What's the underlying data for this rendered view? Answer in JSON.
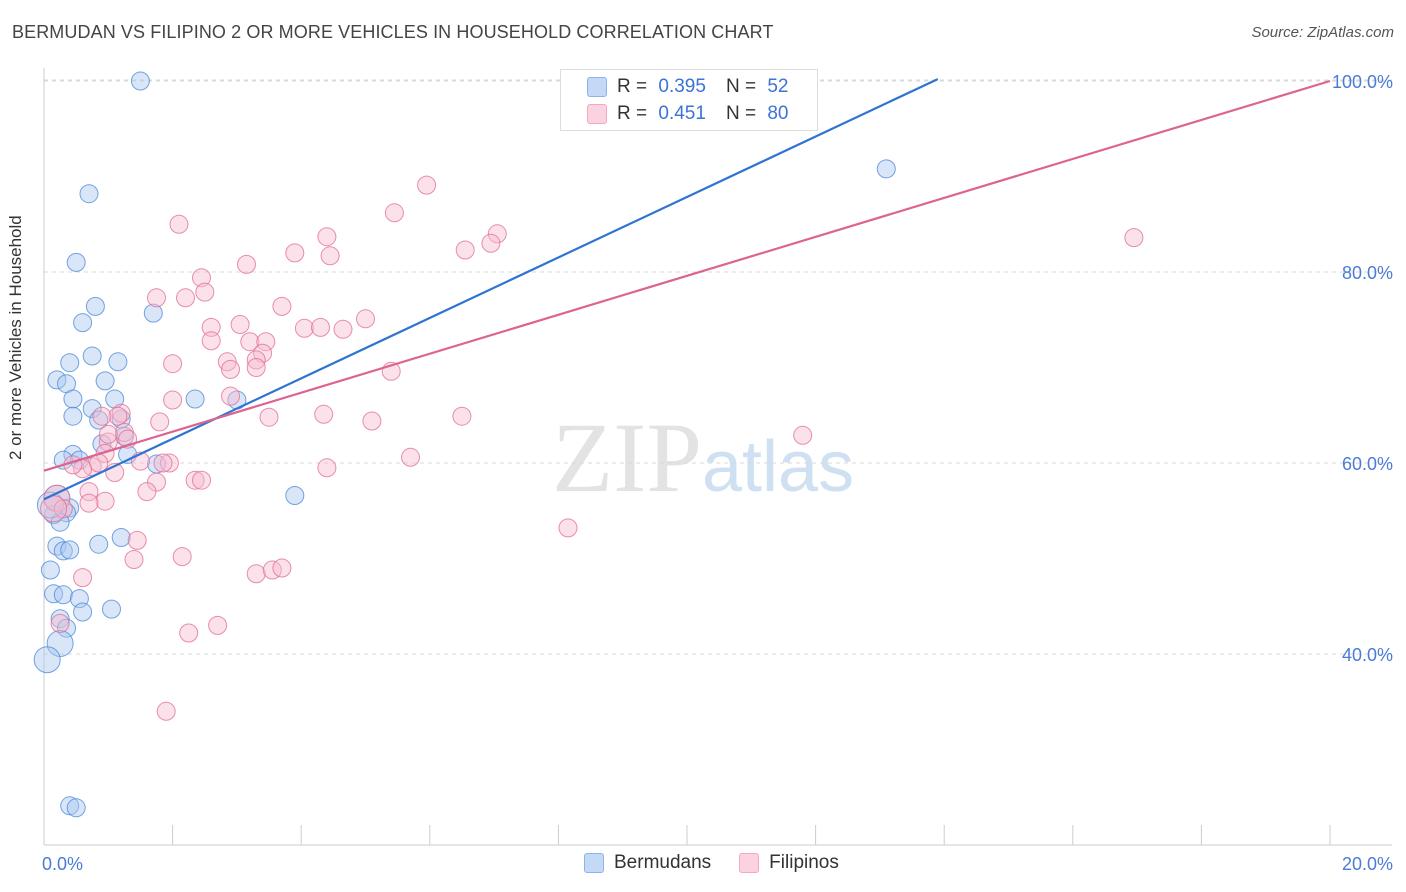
{
  "title": "BERMUDAN VS FILIPINO 2 OR MORE VEHICLES IN HOUSEHOLD CORRELATION CHART",
  "source": "Source: ZipAtlas.com",
  "watermark": {
    "zip": "ZIP",
    "atlas": "atlas"
  },
  "legend": {
    "rows": [
      {
        "r_label": "R =",
        "r_value": "0.395",
        "n_label": "N =",
        "n_value": "52",
        "color": "#8db4ea"
      },
      {
        "r_label": "R =",
        "r_value": "0.451",
        "n_label": "N =",
        "n_value": "80",
        "color": "#f4a9c0"
      }
    ]
  },
  "bottom_legend": [
    {
      "label": "Bermudans",
      "color": "#8db4ea"
    },
    {
      "label": "Filipinos",
      "color": "#f4a9c0"
    }
  ],
  "chart_data": {
    "type": "scatter",
    "title": "BERMUDAN VS FILIPINO 2 OR MORE VEHICLES IN HOUSEHOLD CORRELATION CHART",
    "xlabel": "",
    "ylabel": "2 or more Vehicles in Household",
    "xlim": [
      0,
      20
    ],
    "ylim": [
      20,
      102
    ],
    "x_tick_labels": [
      {
        "value": 0,
        "label": "0.0%"
      },
      {
        "value": 20,
        "label": "20.0%"
      }
    ],
    "y_tick_labels": [
      {
        "value": 40,
        "label": "40.0%"
      },
      {
        "value": 60,
        "label": "60.0%"
      },
      {
        "value": 80,
        "label": "80.0%"
      },
      {
        "value": 100,
        "label": "100.0%"
      }
    ],
    "x_minor_ticks": [
      2,
      4,
      6,
      8,
      10,
      12,
      14,
      16,
      18,
      20
    ],
    "series": [
      {
        "name": "Bermudans",
        "color": "#4a86d8",
        "fill": "#a9c8f0",
        "trend": {
          "x": [
            0,
            13.9
          ],
          "y": [
            56.2,
            100.2
          ],
          "color": "#2f74d0"
        },
        "points": [
          [
            1.5,
            100.0
          ],
          [
            0.7,
            88.2
          ],
          [
            0.5,
            81.0
          ],
          [
            0.8,
            76.4
          ],
          [
            0.6,
            74.7
          ],
          [
            1.7,
            75.7
          ],
          [
            0.4,
            70.5
          ],
          [
            0.75,
            71.2
          ],
          [
            1.15,
            70.6
          ],
          [
            0.2,
            68.7
          ],
          [
            0.35,
            68.3
          ],
          [
            0.95,
            68.6
          ],
          [
            0.45,
            66.7
          ],
          [
            0.75,
            65.7
          ],
          [
            1.1,
            66.7
          ],
          [
            2.35,
            66.7
          ],
          [
            0.45,
            64.9
          ],
          [
            0.85,
            64.5
          ],
          [
            1.2,
            64.6
          ],
          [
            1.25,
            62.8
          ],
          [
            0.9,
            62.0
          ],
          [
            0.45,
            60.9
          ],
          [
            0.55,
            60.3
          ],
          [
            1.3,
            60.9
          ],
          [
            1.75,
            59.9
          ],
          [
            0.3,
            60.3
          ],
          [
            0.2,
            56.3
          ],
          [
            0.4,
            55.3
          ],
          [
            0.35,
            54.8
          ],
          [
            0.15,
            54.6
          ],
          [
            0.25,
            53.8
          ],
          [
            3.9,
            56.6
          ],
          [
            1.2,
            52.2
          ],
          [
            0.85,
            51.5
          ],
          [
            0.2,
            51.3
          ],
          [
            0.3,
            50.8
          ],
          [
            0.4,
            50.9
          ],
          [
            0.1,
            48.8
          ],
          [
            0.15,
            46.3
          ],
          [
            0.3,
            46.2
          ],
          [
            0.55,
            45.8
          ],
          [
            0.6,
            44.4
          ],
          [
            1.05,
            44.7
          ],
          [
            0.25,
            43.7
          ],
          [
            0.35,
            42.7
          ],
          [
            0.25,
            41.1
          ],
          [
            0.05,
            39.4
          ],
          [
            0.4,
            24.1
          ],
          [
            0.5,
            23.9
          ],
          [
            13.1,
            90.8
          ],
          [
            3.0,
            66.6
          ],
          [
            0.1,
            55.6
          ]
        ]
      },
      {
        "name": "Filipinos",
        "color": "#e26a95",
        "fill": "#f7bccf",
        "trend": {
          "x": [
            0,
            20
          ],
          "y": [
            59.2,
            100.0
          ],
          "color": "#dd6492"
        },
        "points": [
          [
            5.95,
            89.1
          ],
          [
            5.45,
            86.2
          ],
          [
            2.1,
            85.0
          ],
          [
            4.4,
            83.7
          ],
          [
            7.05,
            84.0
          ],
          [
            6.95,
            83.0
          ],
          [
            6.55,
            82.3
          ],
          [
            3.9,
            82.0
          ],
          [
            4.45,
            81.7
          ],
          [
            3.15,
            80.8
          ],
          [
            2.45,
            79.4
          ],
          [
            2.5,
            77.9
          ],
          [
            1.75,
            77.3
          ],
          [
            2.2,
            77.3
          ],
          [
            3.7,
            76.4
          ],
          [
            5.0,
            75.1
          ],
          [
            2.6,
            74.2
          ],
          [
            3.05,
            74.5
          ],
          [
            4.05,
            74.1
          ],
          [
            4.3,
            74.2
          ],
          [
            4.65,
            74.0
          ],
          [
            2.6,
            72.8
          ],
          [
            3.2,
            72.7
          ],
          [
            3.45,
            72.7
          ],
          [
            3.4,
            71.5
          ],
          [
            3.3,
            70.8
          ],
          [
            2.0,
            70.4
          ],
          [
            2.85,
            70.6
          ],
          [
            2.9,
            69.8
          ],
          [
            5.4,
            69.6
          ],
          [
            2.0,
            66.6
          ],
          [
            2.9,
            67.0
          ],
          [
            3.5,
            64.8
          ],
          [
            4.35,
            65.1
          ],
          [
            5.1,
            64.4
          ],
          [
            6.5,
            64.9
          ],
          [
            1.8,
            64.3
          ],
          [
            1.2,
            65.2
          ],
          [
            1.15,
            64.9
          ],
          [
            0.9,
            64.9
          ],
          [
            1.25,
            63.2
          ],
          [
            1.0,
            62.2
          ],
          [
            0.95,
            61.0
          ],
          [
            1.5,
            60.2
          ],
          [
            1.95,
            60.0
          ],
          [
            0.75,
            59.6
          ],
          [
            0.6,
            59.4
          ],
          [
            0.45,
            59.8
          ],
          [
            1.75,
            58.0
          ],
          [
            2.35,
            58.2
          ],
          [
            1.1,
            59.0
          ],
          [
            0.7,
            57.0
          ],
          [
            1.6,
            57.0
          ],
          [
            0.2,
            56.3
          ],
          [
            0.95,
            56.0
          ],
          [
            0.7,
            55.8
          ],
          [
            0.3,
            55.2
          ],
          [
            0.15,
            55.2
          ],
          [
            1.45,
            51.9
          ],
          [
            2.15,
            50.2
          ],
          [
            1.4,
            49.9
          ],
          [
            3.3,
            48.4
          ],
          [
            3.55,
            48.8
          ],
          [
            3.7,
            49.0
          ],
          [
            0.6,
            48.0
          ],
          [
            0.25,
            43.2
          ],
          [
            2.25,
            42.2
          ],
          [
            2.7,
            43.0
          ],
          [
            1.9,
            34.0
          ],
          [
            8.15,
            53.2
          ],
          [
            11.8,
            62.9
          ],
          [
            16.95,
            83.6
          ],
          [
            5.7,
            60.6
          ],
          [
            1.85,
            60.0
          ],
          [
            3.3,
            70.0
          ],
          [
            2.45,
            58.2
          ],
          [
            0.85,
            60.0
          ],
          [
            1.3,
            62.5
          ],
          [
            4.4,
            59.5
          ],
          [
            1.0,
            63.0
          ]
        ]
      }
    ],
    "grid": true
  }
}
